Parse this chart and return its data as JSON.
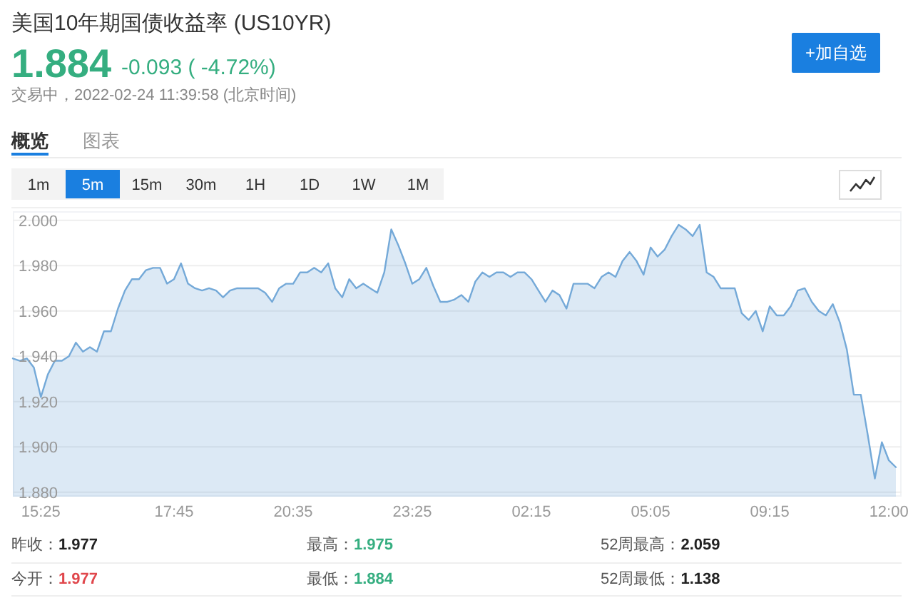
{
  "chart_data": {
    "type": "area",
    "title": "美国10年期国债收益率 (US10YR)",
    "categories": [
      null,
      null,
      null,
      null,
      "15:25",
      null,
      null,
      null,
      null,
      null,
      null,
      null,
      null,
      null,
      null,
      null,
      null,
      null,
      null,
      null,
      null,
      null,
      null,
      "17:45",
      null,
      null,
      null,
      null,
      null,
      null,
      null,
      null,
      null,
      null,
      null,
      null,
      null,
      null,
      null,
      null,
      "20:35",
      null,
      null,
      null,
      null,
      null,
      null,
      null,
      null,
      null,
      null,
      null,
      null,
      null,
      null,
      null,
      null,
      "23:25",
      null,
      null,
      null,
      null,
      null,
      null,
      null,
      null,
      null,
      null,
      null,
      null,
      null,
      null,
      null,
      null,
      "02:15",
      null,
      null,
      null,
      null,
      null,
      null,
      null,
      null,
      null,
      null,
      null,
      null,
      null,
      null,
      null,
      null,
      "05:05",
      null,
      null,
      null,
      null,
      null,
      null,
      null,
      null,
      null,
      null,
      null,
      null,
      null,
      null,
      null,
      null,
      "09:15",
      null,
      null,
      null,
      null,
      null,
      null,
      null,
      null,
      null,
      null,
      null,
      null,
      null,
      null,
      null,
      null,
      "12:00",
      null
    ],
    "series": [
      {
        "color": "#74a9d8",
        "values": [
          1.939,
          1.938,
          1.939,
          1.935,
          1.922,
          1.932,
          1.938,
          1.938,
          1.94,
          1.946,
          1.942,
          1.944,
          1.942,
          1.951,
          1.951,
          1.961,
          1.969,
          1.974,
          1.974,
          1.978,
          1.979,
          1.979,
          1.972,
          1.974,
          1.981,
          1.972,
          1.97,
          1.969,
          1.97,
          1.969,
          1.966,
          1.969,
          1.97,
          1.97,
          1.97,
          1.97,
          1.968,
          1.964,
          1.97,
          1.972,
          1.972,
          1.977,
          1.977,
          1.979,
          1.977,
          1.981,
          1.97,
          1.966,
          1.974,
          1.97,
          1.972,
          1.97,
          1.968,
          1.977,
          1.996,
          1.989,
          1.981,
          1.972,
          1.974,
          1.979,
          1.971,
          1.964,
          1.964,
          1.965,
          1.967,
          1.964,
          1.973,
          1.977,
          1.975,
          1.977,
          1.977,
          1.975,
          1.977,
          1.977,
          1.974,
          1.969,
          1.964,
          1.969,
          1.967,
          1.961,
          1.972,
          1.972,
          1.972,
          1.97,
          1.975,
          1.977,
          1.975,
          1.982,
          1.986,
          1.982,
          1.976,
          1.988,
          1.984,
          1.987,
          1.993,
          1.998,
          1.996,
          1.993,
          1.998,
          1.977,
          1.975,
          1.97,
          1.97,
          1.97,
          1.959,
          1.956,
          1.96,
          1.951,
          1.962,
          1.958,
          1.958,
          1.962,
          1.969,
          1.97,
          1.964,
          1.96,
          1.958,
          1.963,
          1.955,
          1.943,
          1.923,
          1.923,
          1.905,
          1.886,
          1.902,
          1.894,
          1.891
        ]
      }
    ],
    "ylim": [
      1.878,
      2.004
    ],
    "yticks": [
      {
        "value": 1.88,
        "label": "1.880"
      },
      {
        "value": 1.9,
        "label": "1.900"
      },
      {
        "value": 1.92,
        "label": "1.920"
      },
      {
        "value": 1.94,
        "label": "1.940"
      },
      {
        "value": 1.96,
        "label": "1.960"
      },
      {
        "value": 1.98,
        "label": "1.980"
      },
      {
        "value": 2,
        "label": "2.000"
      }
    ],
    "grid": "y",
    "line_style": "solid",
    "annotations": [
      "1.884",
      "-0.093 ( -4.72%)",
      "交易中，2022-02-24 11:39:58 (北京时间)",
      "+加自选",
      "概览",
      "图表",
      "1m",
      "5m",
      "15m",
      "30m",
      "1H",
      "1D",
      "1W",
      "1M",
      "昨收：1.977",
      "最高：1.975",
      "52周最高：2.059",
      "今开：1.977",
      "最低：1.884",
      "52周最低：1.138"
    ]
  }
}
